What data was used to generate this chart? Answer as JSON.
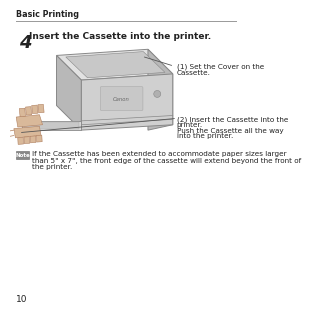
{
  "bg_color": "#ffffff",
  "header_text": "Basic Printing",
  "step_number": "4",
  "step_title": "Insert the Cassette into the printer.",
  "annotation1_line1": "(1) Set the Cover on the",
  "annotation1_line2": "Cassette.",
  "annotation2_line1": "(2) Insert the Cassette into the",
  "annotation2_line2": "printer.",
  "annotation2_line3": "Push the Cassette all the way",
  "annotation2_line4": "into the printer.",
  "note_label": "Note",
  "note_text_line1": "If the Cassette has been extended to accommodate paper sizes larger",
  "note_text_line2": "than 5\" x 7\", the front edge of the cassette will extend beyond the front of",
  "note_text_line3": "the printer.",
  "page_number": "10",
  "header_line_color": "#999999",
  "text_color": "#222222",
  "light_text_color": "#444444",
  "note_icon_color": "#888888",
  "printer_top_color": "#e2e2e2",
  "printer_top_dark": "#c8c8c8",
  "printer_side_color": "#b8b8b8",
  "printer_front_color": "#d0d0d0",
  "printer_edge_color": "#888888",
  "cassette_color": "#d8d8d8",
  "cassette_edge": "#888888",
  "hand_fill": "#d9b99a",
  "hand_edge": "#b08060",
  "line_color": "#666666",
  "arrow_line_color": "#555555"
}
